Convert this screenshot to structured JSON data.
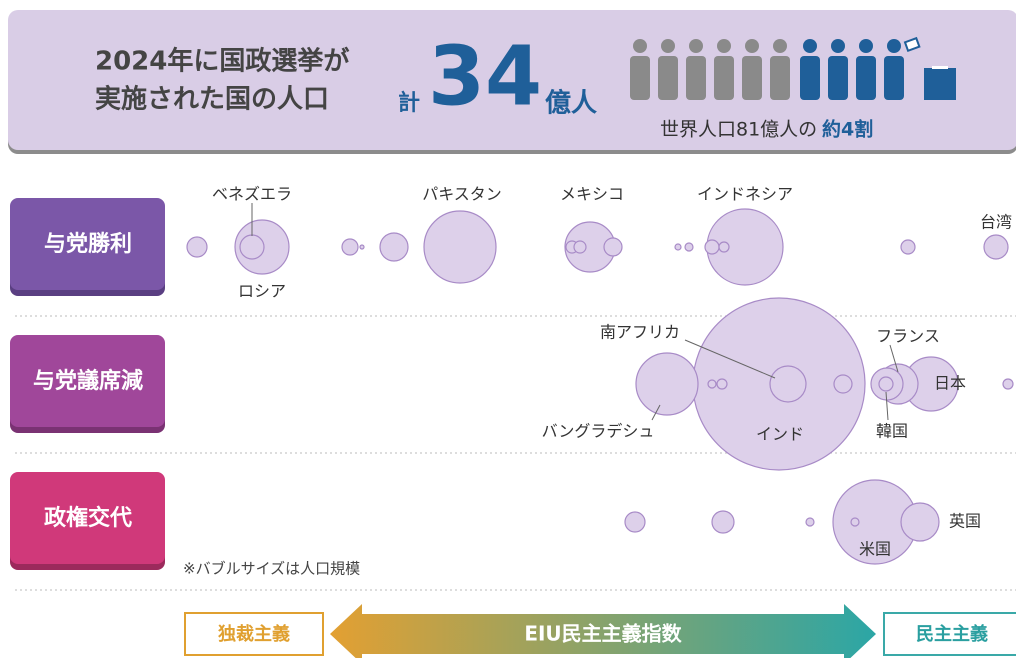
{
  "header": {
    "title_lines": [
      "2024年に国政選挙が",
      "実施された国の人口"
    ],
    "total_prefix": "計",
    "total_number": "34",
    "total_unit": "億人",
    "share_text": "世界人口81億人の",
    "share_emphasis": "約4割"
  },
  "rows": [
    {
      "label": "与党勝利"
    },
    {
      "label": "与党議席減"
    },
    {
      "label": "政権交代"
    }
  ],
  "countries": [
    "ベネズエラ",
    "ロシア",
    "パキスタン",
    "メキシコ",
    "インドネシア",
    "台湾",
    "南アフリカ",
    "フランス",
    "日本",
    "韓国",
    "バングラデシュ",
    "インド",
    "英国",
    "米国"
  ],
  "note": "※バブルサイズは人口規模",
  "footer": {
    "left": "独裁主義",
    "center": "EIU民主主義指数",
    "right": "民主主義"
  }
}
